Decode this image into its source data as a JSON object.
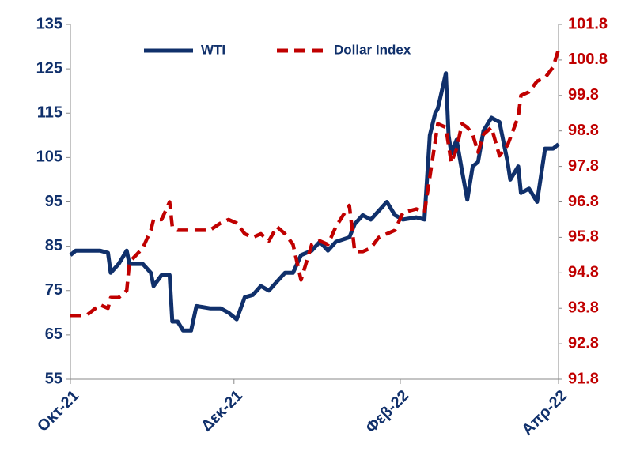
{
  "chart_data": {
    "type": "line",
    "x": [
      0,
      2,
      6,
      11,
      14,
      15,
      18,
      21,
      22,
      27,
      30,
      31,
      34,
      37,
      38,
      40,
      42,
      45,
      47,
      52,
      56,
      59,
      62,
      65,
      68,
      71,
      74,
      77,
      80,
      83,
      86,
      90,
      93,
      96,
      99,
      104,
      106,
      109,
      112,
      115,
      118,
      121,
      124,
      129,
      132,
      134,
      136,
      137,
      140,
      141,
      142,
      144,
      146,
      148,
      150,
      152,
      154,
      157,
      160,
      163,
      164,
      167,
      168,
      171,
      174,
      177,
      180,
      182
    ],
    "xlim": [
      0,
      182
    ],
    "xticks": [
      {
        "value": 0,
        "label": "Οκτ-21"
      },
      {
        "value": 61,
        "label": "Δεκ-21"
      },
      {
        "value": 123,
        "label": "Φεβ-22"
      },
      {
        "value": 182,
        "label": "Απρ-22"
      }
    ],
    "ylim": [
      55,
      135
    ],
    "yticks": [
      55,
      65,
      75,
      85,
      95,
      105,
      115,
      125,
      135
    ],
    "y2lim": [
      91.8,
      101.8
    ],
    "y2ticks": [
      91.8,
      92.8,
      93.8,
      94.8,
      95.8,
      96.8,
      97.8,
      98.8,
      99.8,
      100.8,
      101.8
    ],
    "legend": "top",
    "series": [
      {
        "name": "WTI",
        "color": "#10306b",
        "axis": "y",
        "values": [
          83,
          84,
          84,
          84,
          83.5,
          79,
          81,
          84,
          81,
          81,
          79,
          76,
          78.5,
          78.5,
          68,
          68,
          66,
          66,
          71.5,
          71,
          71,
          70,
          68.5,
          73.5,
          74,
          76,
          75,
          77,
          79,
          79,
          83,
          84,
          86,
          84,
          86,
          87,
          90,
          92,
          91,
          93,
          95,
          92,
          91,
          91.5,
          91,
          110,
          115,
          116,
          124,
          110,
          106,
          109,
          102,
          95.5,
          103,
          104,
          111,
          114,
          113,
          104,
          100,
          103,
          97,
          98,
          95,
          107,
          107,
          108
        ]
      },
      {
        "name": "Dollar Index",
        "color": "#c00000",
        "axis": "y2",
        "values": [
          93.6,
          93.6,
          93.6,
          93.9,
          93.8,
          94.1,
          94.1,
          94.3,
          95.1,
          95.5,
          96,
          96.3,
          96.3,
          96.8,
          96.1,
          96,
          96,
          96,
          96,
          96,
          96.2,
          96.3,
          96.2,
          95.9,
          95.8,
          95.9,
          95.7,
          96.1,
          95.9,
          95.6,
          94.6,
          95.6,
          95.7,
          95.6,
          96.1,
          96.7,
          95.4,
          95.4,
          95.5,
          95.8,
          95.9,
          96,
          96.5,
          96.6,
          96.5,
          97.5,
          98.5,
          99,
          98.9,
          98.4,
          97.9,
          98.3,
          99,
          98.9,
          98.7,
          98.2,
          98.7,
          98.9,
          98.1,
          98.4,
          98.6,
          99.2,
          99.8,
          99.9,
          100.2,
          100.3,
          100.6,
          101.1
        ]
      }
    ]
  }
}
